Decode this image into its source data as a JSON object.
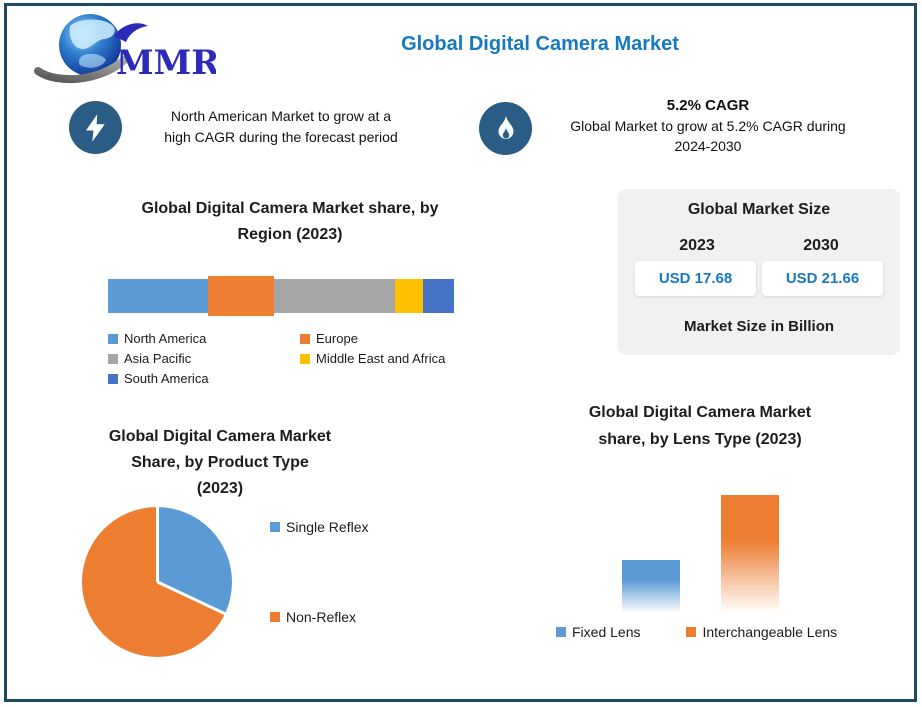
{
  "brand": {
    "logo_text": "MMR"
  },
  "header": {
    "title": "Global Digital Camera Market"
  },
  "highlights": {
    "left": {
      "icon": "lightning-icon",
      "line1": "North American Market to grow at a",
      "line2": "high CAGR during the forecast period"
    },
    "right": {
      "icon": "flame-icon",
      "headline": "5.2% CAGR",
      "line1": "Global Market to grow at 5.2% CAGR during",
      "line2": "2024-2030"
    }
  },
  "market_size_panel": {
    "title": "Global Market Size",
    "columns": [
      {
        "year": "2023",
        "value": "USD 17.68"
      },
      {
        "year": "2030",
        "value": "USD 21.66"
      }
    ],
    "footnote": "Market Size in Billion"
  },
  "colors": {
    "accent_blue": "#1779BF",
    "value_blue": "#1779BF",
    "icon_circle_blue": "#2A5C85",
    "border_navy": "#1F4A60",
    "panel_gray": "#F1F1F2"
  },
  "chart_data": [
    {
      "id": "region_share",
      "type": "bar",
      "subtype": "stacked-horizontal",
      "title": "Global Digital Camera Market share, by Region (2023)",
      "title_lines": [
        "Global Digital Camera Market share, by",
        "Region (2023)"
      ],
      "categories": [
        "North America",
        "Europe",
        "Asia Pacific",
        "Middle East and Africa",
        "South America"
      ],
      "values": [
        29,
        19,
        35,
        8,
        9
      ],
      "colors": [
        "#5B9BD5",
        "#ED7D31",
        "#A5A5A5",
        "#FFC000",
        "#4472C4"
      ],
      "emphasized_index": 1,
      "legend_position": "bottom",
      "grid": false
    },
    {
      "id": "product_type_share",
      "type": "pie",
      "title": "Global Digital Camera Market Share, by Product Type (2023)",
      "title_lines": [
        "Global Digital Camera Market",
        "Share, by Product Type",
        "(2023)"
      ],
      "categories": [
        "Single Reflex",
        "Non-Reflex"
      ],
      "values": [
        32,
        68
      ],
      "colors": [
        "#5B9BD5",
        "#ED7D31"
      ],
      "legend_position": "right",
      "start_angle_deg": 0
    },
    {
      "id": "lens_type_share",
      "type": "bar",
      "title": "Global Digital Camera Market share, by Lens Type (2023)",
      "title_lines": [
        "Global Digital Camera Market",
        "share, by Lens Type (2023)"
      ],
      "categories": [
        "Fixed Lens",
        "Interchangeable Lens"
      ],
      "values": [
        31,
        69
      ],
      "colors": [
        "#5B9BD5",
        "#ED7D31"
      ],
      "gradient_fade_to_white": true,
      "legend_position": "bottom",
      "grid": false
    }
  ]
}
